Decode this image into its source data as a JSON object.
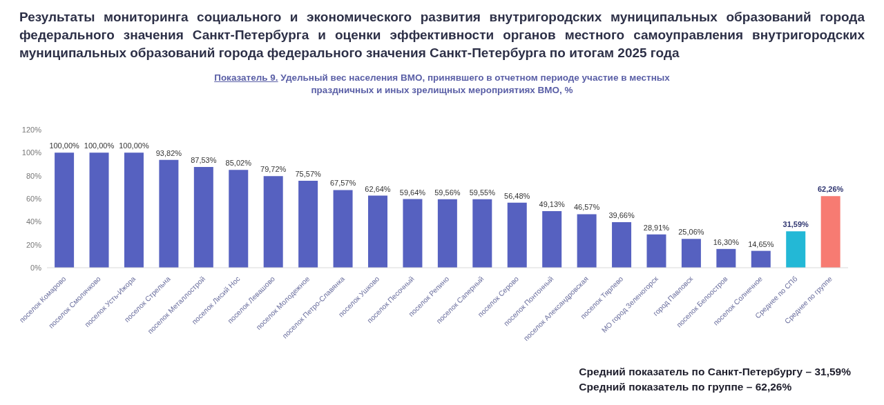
{
  "chart_data": {
    "type": "bar",
    "title": "Результаты мониторинга социального и экономического развития внутригородских муниципальных образований города федерального значения Санкт-Петербурга и оценки эффективности органов местного самоуправления внутригородских муниципальных образований города федерального значения Санкт-Петербурга по итогам 2025 года",
    "subtitle": "Показатель 9. Удельный вес населения ВМО, принявшего в отчетном периоде участие в местных праздничных и иных зрелищных мероприятиях ВМО, %",
    "categories": [
      "поселок Комарово",
      "поселок Смолячково",
      "поселок Усть-Ижора",
      "поселок Стрельна",
      "поселок Металлострой",
      "поселок Лисий Нос",
      "поселок Левашово",
      "поселок Молодежное",
      "поселок Петро-Славянка",
      "поселок Ушково",
      "поселок Песочный",
      "поселок Репино",
      "поселок Саперный",
      "поселок Серово",
      "поселок Понтонный",
      "поселок Александровская",
      "поселок Тярлево",
      "МО город Зеленогорск",
      "город Павловск",
      "поселок Белоостров",
      "поселок Солнечное",
      "Среднее по СПб",
      "Среднее по группе"
    ],
    "values": [
      100,
      100,
      100,
      93.82,
      87.53,
      85.02,
      79.72,
      75.57,
      67.57,
      62.64,
      59.64,
      59.56,
      59.55,
      56.48,
      49.13,
      46.57,
      39.66,
      28.91,
      25.06,
      16.3,
      14.65,
      31.59,
      62.26
    ],
    "value_labels": [
      "100,00%",
      "100,00%",
      "100,00%",
      "93,82%",
      "87,53%",
      "85,02%",
      "79,72%",
      "75,57%",
      "67,57%",
      "62,64%",
      "59,64%",
      "59,56%",
      "59,55%",
      "56,48%",
      "49,13%",
      "46,57%",
      "39,66%",
      "28,91%",
      "25,06%",
      "16,30%",
      "14,65%",
      "31,59%",
      "62,26%"
    ],
    "colors": [
      "#5661c0",
      "#5661c0",
      "#5661c0",
      "#5661c0",
      "#5661c0",
      "#5661c0",
      "#5661c0",
      "#5661c0",
      "#5661c0",
      "#5661c0",
      "#5661c0",
      "#5661c0",
      "#5661c0",
      "#5661c0",
      "#5661c0",
      "#5661c0",
      "#5661c0",
      "#5661c0",
      "#5661c0",
      "#5661c0",
      "#5661c0",
      "#23b8d6",
      "#f77b72"
    ],
    "ylim": [
      0,
      120
    ],
    "yticks": [
      {
        "value": 0,
        "label": "0%"
      },
      {
        "value": 20,
        "label": "20%"
      },
      {
        "value": 40,
        "label": "40%"
      },
      {
        "value": 60,
        "label": "60%"
      },
      {
        "value": 80,
        "label": "80%"
      },
      {
        "value": 100,
        "label": "100%"
      },
      {
        "value": 120,
        "label": "120%"
      }
    ],
    "grid": false,
    "annotations": [
      "Средний показатель по Санкт-Петербургу – 31,59%",
      "Средний показатель по группе – 62,26%"
    ]
  }
}
